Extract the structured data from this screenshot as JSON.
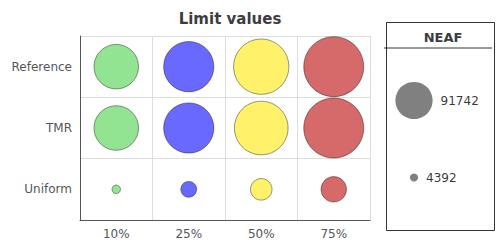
{
  "chart_data": {
    "type": "bubble",
    "title": "Limit values",
    "categories": [
      "10%",
      "25%",
      "50%",
      "75%"
    ],
    "y_categories": [
      "Uniform",
      "TMR",
      "Reference"
    ],
    "colors": [
      "#77dd77",
      "#4444ff",
      "#ffee44",
      "#cc4444"
    ],
    "sizes": [
      [
        0.02,
        0.07,
        0.13,
        0.18
      ],
      [
        0.55,
        0.7,
        0.8,
        1.0
      ],
      [
        0.55,
        0.7,
        0.85,
        1.0
      ]
    ],
    "grid": true,
    "size_legend": {
      "title": "NEAF",
      "values": [
        91742,
        4392
      ],
      "color": "#606060"
    }
  }
}
